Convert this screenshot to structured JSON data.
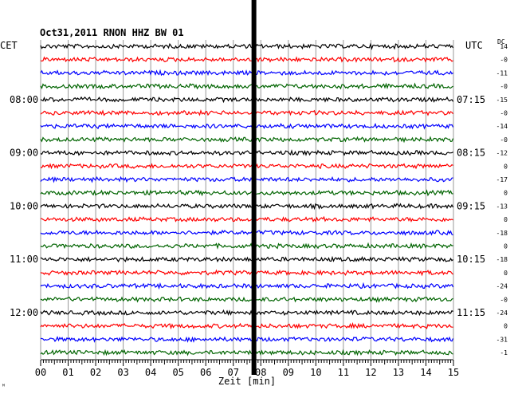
{
  "chart_data": {
    "type": "line",
    "title": "Oct31,2011   RNON HHZ BW 01",
    "left_zone_label": "CET",
    "right_zone_label": "UTC",
    "dc_label": "DC",
    "xlabel": "Zeit [min]",
    "x_ticks": [
      "00",
      "01",
      "02",
      "03",
      "04",
      "05",
      "06",
      "07",
      "08",
      "09",
      "10",
      "11",
      "12",
      "13",
      "14",
      "15"
    ],
    "xlim": [
      0,
      15
    ],
    "trace_count": 24,
    "trace_colors": [
      "#000000",
      "#ff0000",
      "#0000ff",
      "#006400"
    ],
    "left_hour_labels": [
      {
        "trace": 4,
        "text": "08:00"
      },
      {
        "trace": 8,
        "text": "09:00"
      },
      {
        "trace": 12,
        "text": "10:00"
      },
      {
        "trace": 16,
        "text": "11:00"
      },
      {
        "trace": 20,
        "text": "12:00"
      }
    ],
    "right_hour_labels": [
      {
        "trace": 4,
        "text": "07:15"
      },
      {
        "trace": 8,
        "text": "08:15"
      },
      {
        "trace": 12,
        "text": "09:15"
      },
      {
        "trace": 16,
        "text": "10:15"
      },
      {
        "trace": 20,
        "text": "11:15"
      }
    ],
    "dc_offsets": [
      "14",
      "-0",
      "-11",
      "-0",
      "-15",
      "-0",
      "-14",
      "-0",
      "-12",
      "0",
      "-17",
      "0",
      "-13",
      "0",
      "-18",
      "0",
      "-18",
      "0",
      "-24",
      "-0",
      "-24",
      "0",
      "-31",
      "-1"
    ],
    "event_time_min": 7.75
  }
}
